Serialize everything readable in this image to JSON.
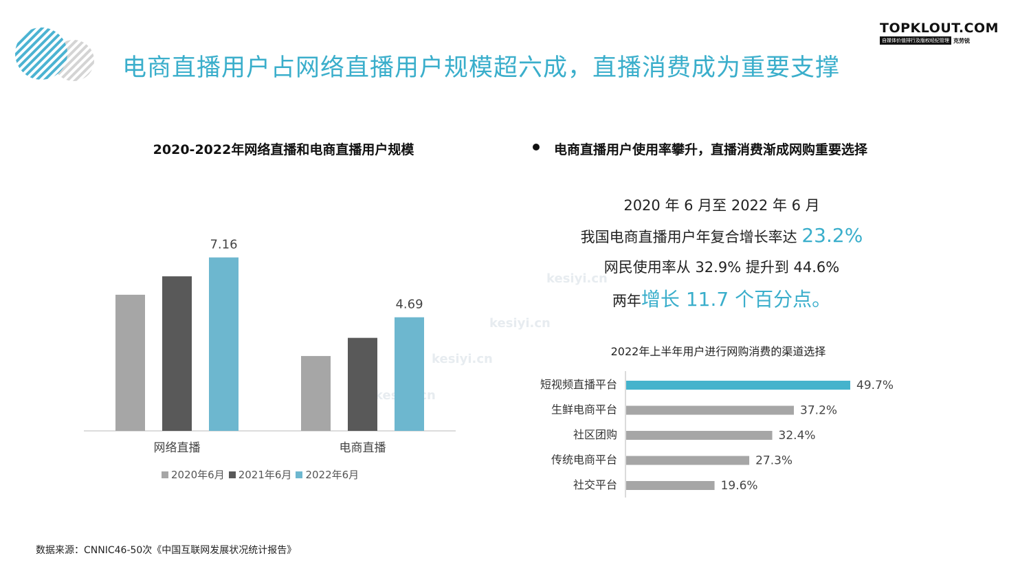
{
  "header": {
    "title": "电商直播用户占网络直播用户规模超六成，直播消费成为重要支撑",
    "logo_main": "TOPKLOUT.COM",
    "logo_tagline": "自媒体价值排行及版权经纪管理",
    "logo_brand": "克劳锐"
  },
  "left_panel": {
    "title": "2020-2022年网络直播和电商直播用户规模"
  },
  "right_panel": {
    "title": "电商直播用户使用率攀升，直播消费渐成网购重要选择",
    "highlight": {
      "line1": "2020 年 6 月至 2022 年 6 月",
      "line2_prefix": "我国电商直播用户年复合增长率达 ",
      "line2_value": "23.2%",
      "line3": "网民使用率从 32.9% 提升到 44.6%",
      "line4_prefix": "两年",
      "line4_value": "增长 11.7 个百分点。"
    },
    "channel_chart_title": "2022年上半年用户进行网购消费的渠道选择"
  },
  "source": "数据来源：CNNIC46-50次《中国互联网发展状况统计报告》",
  "watermark": "kesiyi.cn",
  "chart_data": [
    {
      "type": "bar",
      "title": "2020-2022年网络直播和电商直播用户规模",
      "categories": [
        "网络直播",
        "电商直播"
      ],
      "series": [
        {
          "name": "2020年6月",
          "values": [
            5.62,
            3.09
          ],
          "color": "#a6a6a6"
        },
        {
          "name": "2021年6月",
          "values": [
            6.38,
            3.84
          ],
          "color": "#595959"
        },
        {
          "name": "2022年6月",
          "values": [
            7.16,
            4.69
          ],
          "color": "#6db7cf"
        }
      ],
      "data_labels": [
        "",
        "",
        "7.16",
        "",
        "",
        "4.69"
      ],
      "ylim": [
        0,
        8
      ],
      "grid": false,
      "legend": "bottom"
    },
    {
      "type": "bar",
      "orientation": "horizontal",
      "title": "2022年上半年用户进行网购消费的渠道选择",
      "categories": [
        "短视频直播平台",
        "生鲜电商平台",
        "社区团购",
        "传统电商平台",
        "社交平台"
      ],
      "values": [
        49.7,
        37.2,
        32.4,
        27.3,
        19.6
      ],
      "value_labels": [
        "49.7%",
        "37.2%",
        "32.4%",
        "27.3%",
        "19.6%"
      ],
      "colors": [
        "#45b3cc",
        "#a6a6a6",
        "#a6a6a6",
        "#a6a6a6",
        "#a6a6a6"
      ],
      "xlim": [
        0,
        50
      ]
    }
  ]
}
